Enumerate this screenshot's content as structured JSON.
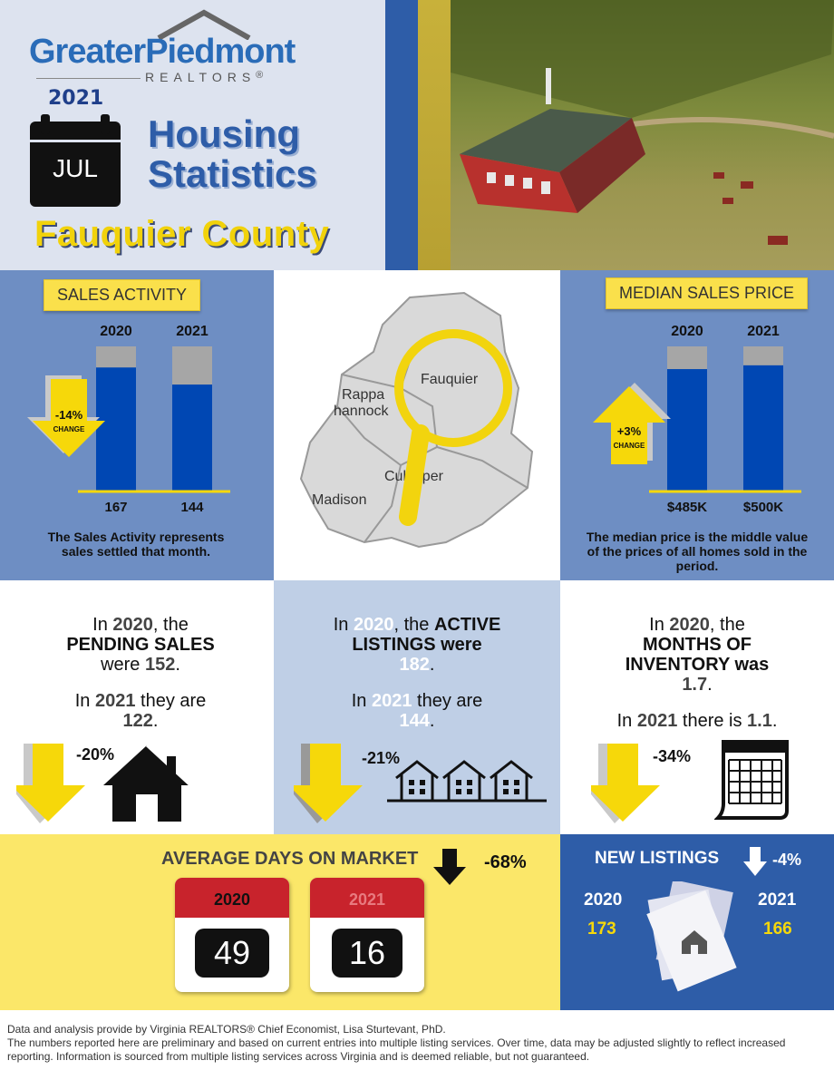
{
  "header": {
    "logo_main": "GreaterPiedmont",
    "logo_sub": "REALTORS",
    "logo_mark": "®",
    "year": "2021",
    "month": "JUL",
    "title_line1": "Housing",
    "title_line2": "Statistics",
    "county": "Fauquier County"
  },
  "sales_activity": {
    "tag": "SALES ACTIVITY",
    "change": "-14%",
    "change_label": "CHANGE",
    "description": "The Sales Activity represents sales settled that month.",
    "chart_data": {
      "type": "bar",
      "categories": [
        "2020",
        "2021"
      ],
      "values": [
        167,
        144
      ],
      "labels": [
        "167",
        "144"
      ]
    }
  },
  "map": {
    "regions": [
      "Fauquier",
      "Rappa hannock",
      "Culpeper",
      "Madison"
    ]
  },
  "median_price": {
    "tag": "MEDIAN SALES PRICE",
    "change": "+3%",
    "change_label": "CHANGE",
    "description": "The median price is the middle value of the prices of all homes sold in the period.",
    "chart_data": {
      "type": "bar",
      "categories": [
        "2020",
        "2021"
      ],
      "values": [
        485,
        500
      ],
      "labels": [
        "$485K",
        "$500K"
      ]
    }
  },
  "pending": {
    "in1": "In",
    "year1": "2020",
    "the1": ", the",
    "label": "PENDING SALES",
    "were": "were",
    "value1": "152",
    "dot1": ".",
    "in2": "In",
    "year2": "2021",
    "they": "they are",
    "value2": "122",
    "dot2": ".",
    "pct": "-20%"
  },
  "active": {
    "in1": "In",
    "year1": "2020",
    "the1": ", the",
    "label1": "ACTIVE",
    "label2": "LISTINGS were",
    "value1": "182",
    "dot1": ".",
    "in2": "In",
    "year2": "2021",
    "they": "they are",
    "value2": "144",
    "dot2": ".",
    "pct": "-21%"
  },
  "inventory": {
    "in1": "In",
    "year1": "2020",
    "the1": ", the",
    "label1": "MONTHS OF",
    "label2": "INVENTORY was",
    "value1": "1.7",
    "dot1": ".",
    "in2": "In",
    "year2": "2021",
    "there": "there is",
    "value2": "1.1",
    "dot2": ".",
    "pct": "-34%"
  },
  "days_on_market": {
    "title": "AVERAGE DAYS ON MARKET",
    "pct": "-68%",
    "year1": "2020",
    "value1": "49",
    "year2": "2021",
    "value2": "16"
  },
  "new_listings": {
    "title": "NEW LISTINGS",
    "pct": "-4%",
    "year1": "2020",
    "value1": "173",
    "year2": "2021",
    "value2": "166"
  },
  "footer": {
    "line1": "Data and analysis provide by Virginia REALTORS® Chief Economist, Lisa Sturtevant, PhD.",
    "line2": "The numbers reported here are preliminary and based on current entries into multiple listing services. Over time, data may be adjusted slightly to reflect increased reporting. Information is sourced from multiple listing services across Virginia and is deemed reliable, but not guaranteed."
  },
  "colors": {
    "navy": "#1f3f8a",
    "bar_blue": "#0047b3",
    "yellow": "#fae04b",
    "panel_blue": "#6e8ec3",
    "light_panel": "#bfcfe6",
    "dark_blue": "#2e5da8",
    "red_calendar": "#c8232c"
  }
}
